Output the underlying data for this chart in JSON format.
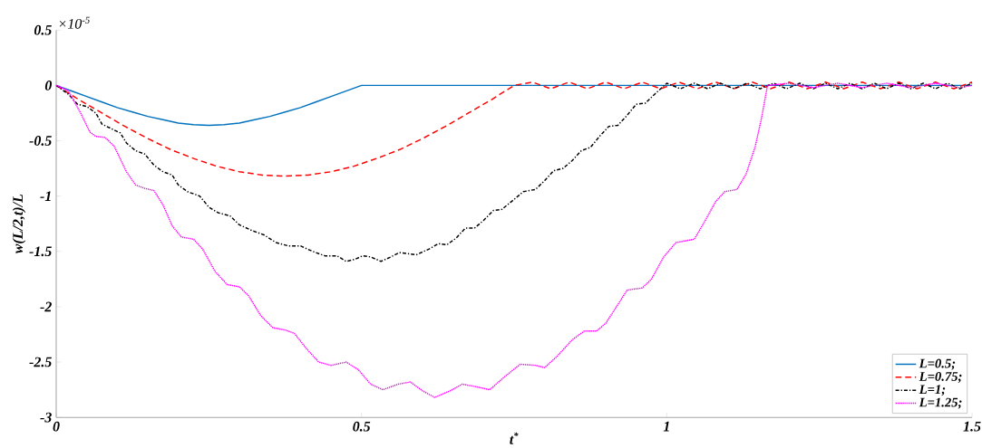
{
  "chart_data": {
    "type": "line",
    "xlabel": "t$^{*}$",
    "ylabel": "w(L/2,t)/L",
    "annotations": [
      "×10$^{-5}$"
    ],
    "xlim": [
      0,
      1.5
    ],
    "ylim": [
      -3,
      0.5
    ],
    "xticks": [
      0,
      0.5,
      1,
      1.5
    ],
    "yticks": [
      -3,
      -2.5,
      -2,
      -1.5,
      -1,
      -0.5,
      0,
      0.5
    ],
    "grid": false,
    "legend": "bottom right",
    "marker": "none",
    "series": [
      {
        "name": "L=0.5;",
        "color": "#0072bd",
        "line_style": "solid",
        "x": [
          0,
          0.025,
          0.05,
          0.075,
          0.1,
          0.125,
          0.15,
          0.175,
          0.2,
          0.225,
          0.25,
          0.275,
          0.3,
          0.325,
          0.35,
          0.375,
          0.4,
          0.425,
          0.45,
          0.475,
          0.5,
          0.75,
          1.0,
          1.25,
          1.5
        ],
        "values": [
          0,
          -0.05,
          -0.1,
          -0.15,
          -0.2,
          -0.24,
          -0.28,
          -0.31,
          -0.34,
          -0.355,
          -0.36,
          -0.355,
          -0.34,
          -0.31,
          -0.28,
          -0.24,
          -0.2,
          -0.15,
          -0.1,
          -0.05,
          0,
          0,
          0,
          0,
          0
        ]
      },
      {
        "name": "L=0.75;",
        "color": "#ff0000",
        "line_style": "dashed",
        "x": [
          0,
          0.0375,
          0.075,
          0.1125,
          0.15,
          0.1875,
          0.225,
          0.2625,
          0.3,
          0.3375,
          0.375,
          0.4125,
          0.45,
          0.4875,
          0.525,
          0.5625,
          0.6,
          0.6375,
          0.675,
          0.7125,
          0.75,
          0.78,
          0.81,
          0.84,
          0.87,
          0.9,
          0.93,
          0.96,
          0.99,
          1.02,
          1.05,
          1.08,
          1.11,
          1.14,
          1.17,
          1.2,
          1.23,
          1.26,
          1.29,
          1.32,
          1.35,
          1.38,
          1.41,
          1.44,
          1.47,
          1.5
        ],
        "values": [
          0,
          -0.13,
          -0.25,
          -0.37,
          -0.48,
          -0.58,
          -0.66,
          -0.73,
          -0.78,
          -0.81,
          -0.82,
          -0.81,
          -0.78,
          -0.73,
          -0.66,
          -0.58,
          -0.48,
          -0.37,
          -0.25,
          -0.13,
          0,
          0.03,
          -0.03,
          0.03,
          -0.03,
          0.03,
          -0.03,
          0.03,
          -0.03,
          0.03,
          -0.03,
          0.03,
          -0.03,
          0.03,
          -0.03,
          0.03,
          -0.03,
          0.03,
          -0.03,
          0.03,
          -0.03,
          0.03,
          -0.03,
          0.03,
          -0.03,
          0.03
        ]
      },
      {
        "name": "L=1;",
        "color": "#000000",
        "line_style": "dashdot",
        "x": [
          0,
          0.02,
          0.035,
          0.05,
          0.065,
          0.075,
          0.09,
          0.105,
          0.115,
          0.13,
          0.145,
          0.16,
          0.175,
          0.19,
          0.2,
          0.215,
          0.235,
          0.25,
          0.265,
          0.285,
          0.3,
          0.32,
          0.34,
          0.36,
          0.38,
          0.4,
          0.42,
          0.44,
          0.46,
          0.475,
          0.49,
          0.502,
          0.515,
          0.532,
          0.548,
          0.562,
          0.575,
          0.59,
          0.61,
          0.626,
          0.64,
          0.655,
          0.67,
          0.685,
          0.7,
          0.716,
          0.73,
          0.75,
          0.765,
          0.785,
          0.8,
          0.815,
          0.83,
          0.845,
          0.86,
          0.875,
          0.89,
          0.905,
          0.92,
          0.935,
          0.95,
          0.965,
          0.98,
          1.0,
          1.022,
          1.045,
          1.067,
          1.088,
          1.11,
          1.131,
          1.153,
          1.175,
          1.196,
          1.218,
          1.24,
          1.26,
          1.28,
          1.3,
          1.32,
          1.34,
          1.36,
          1.38,
          1.4,
          1.42,
          1.44,
          1.46,
          1.48,
          1.5
        ],
        "values": [
          0,
          -0.08,
          -0.17,
          -0.19,
          -0.25,
          -0.35,
          -0.39,
          -0.43,
          -0.52,
          -0.59,
          -0.62,
          -0.72,
          -0.78,
          -0.81,
          -0.9,
          -0.96,
          -1.0,
          -1.1,
          -1.15,
          -1.18,
          -1.26,
          -1.31,
          -1.35,
          -1.42,
          -1.45,
          -1.45,
          -1.5,
          -1.54,
          -1.54,
          -1.59,
          -1.57,
          -1.54,
          -1.55,
          -1.59,
          -1.55,
          -1.51,
          -1.52,
          -1.53,
          -1.48,
          -1.43,
          -1.44,
          -1.38,
          -1.29,
          -1.29,
          -1.22,
          -1.13,
          -1.12,
          -1.03,
          -0.96,
          -0.94,
          -0.86,
          -0.77,
          -0.75,
          -0.68,
          -0.59,
          -0.56,
          -0.46,
          -0.37,
          -0.36,
          -0.27,
          -0.17,
          -0.16,
          -0.08,
          0.02,
          -0.03,
          0.02,
          -0.03,
          0.02,
          -0.03,
          0.02,
          -0.03,
          0.02,
          -0.03,
          0.02,
          -0.03,
          0.02,
          -0.03,
          0.02,
          -0.03,
          0.02,
          -0.03,
          0.02,
          -0.03,
          0.02,
          -0.03,
          0.02,
          -0.03,
          0.02
        ]
      },
      {
        "name": "L=1.25;",
        "color": "#ff00ff",
        "line_style": "dotted",
        "x": [
          0,
          0.02,
          0.04,
          0.055,
          0.065,
          0.08,
          0.095,
          0.115,
          0.13,
          0.145,
          0.16,
          0.175,
          0.19,
          0.205,
          0.225,
          0.24,
          0.26,
          0.28,
          0.3,
          0.315,
          0.335,
          0.355,
          0.375,
          0.39,
          0.41,
          0.43,
          0.45,
          0.475,
          0.495,
          0.515,
          0.535,
          0.56,
          0.58,
          0.6,
          0.62,
          0.645,
          0.665,
          0.685,
          0.71,
          0.735,
          0.76,
          0.785,
          0.8,
          0.82,
          0.845,
          0.865,
          0.885,
          0.9,
          0.92,
          0.935,
          0.96,
          0.975,
          0.995,
          1.015,
          1.045,
          1.06,
          1.08,
          1.095,
          1.115,
          1.13,
          1.145,
          1.155,
          1.165,
          1.2,
          1.24,
          1.28,
          1.32,
          1.36,
          1.4,
          1.44,
          1.48,
          1.5
        ],
        "values": [
          0,
          -0.05,
          -0.25,
          -0.42,
          -0.46,
          -0.47,
          -0.55,
          -0.78,
          -0.9,
          -0.93,
          -0.95,
          -1.08,
          -1.27,
          -1.37,
          -1.39,
          -1.48,
          -1.68,
          -1.8,
          -1.82,
          -1.9,
          -2.08,
          -2.19,
          -2.21,
          -2.24,
          -2.38,
          -2.5,
          -2.53,
          -2.5,
          -2.57,
          -2.7,
          -2.75,
          -2.7,
          -2.68,
          -2.76,
          -2.82,
          -2.76,
          -2.7,
          -2.72,
          -2.75,
          -2.63,
          -2.52,
          -2.53,
          -2.55,
          -2.45,
          -2.3,
          -2.22,
          -2.22,
          -2.15,
          -1.98,
          -1.85,
          -1.83,
          -1.75,
          -1.55,
          -1.42,
          -1.39,
          -1.25,
          -1.05,
          -0.96,
          -0.94,
          -0.8,
          -0.55,
          -0.3,
          0,
          0.02,
          -0.02,
          0.02,
          -0.02,
          0.02,
          -0.02,
          0.02,
          -0.02,
          0
        ]
      }
    ]
  }
}
